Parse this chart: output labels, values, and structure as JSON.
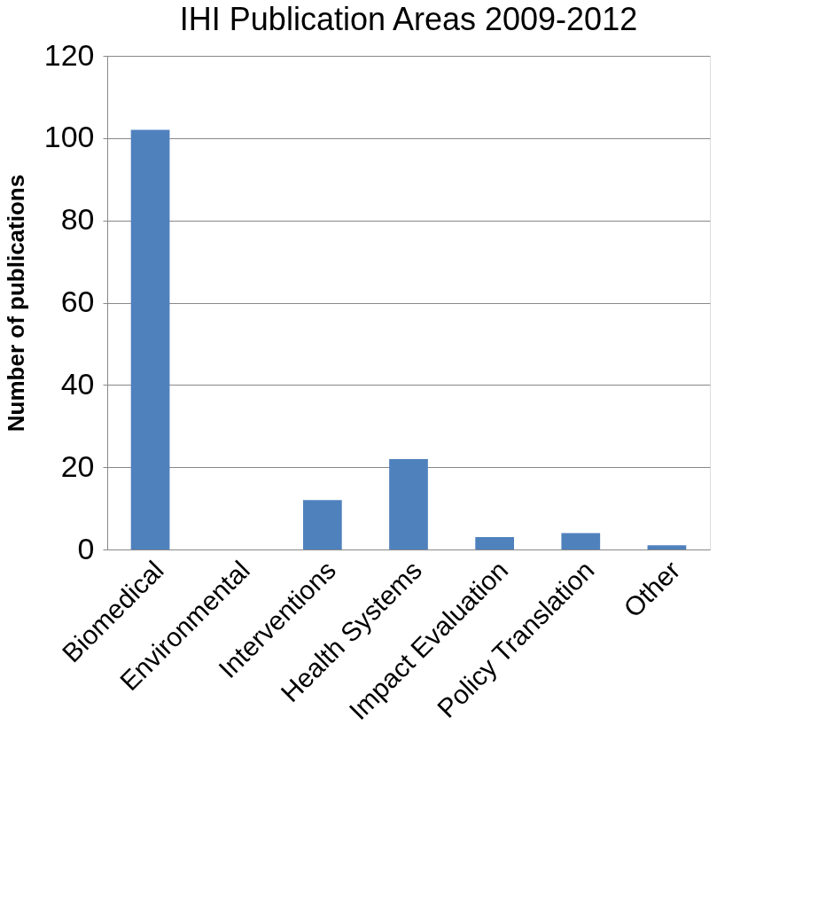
{
  "chart_data": {
    "type": "bar",
    "title": "IHI Publication Areas 2009-2012",
    "ylabel": "Number of publications",
    "categories": [
      "Biomedical",
      "Environmental",
      "Interventions",
      "Health Systems",
      "Impact Evaluation",
      "Policy Translation",
      "Other"
    ],
    "values": [
      102,
      0,
      12,
      22,
      3,
      4,
      1
    ],
    "color": "#4f81bd",
    "ylim": [
      0,
      120
    ],
    "yticks": [
      0,
      20,
      40,
      60,
      80,
      100,
      120
    ],
    "grid": "y"
  }
}
